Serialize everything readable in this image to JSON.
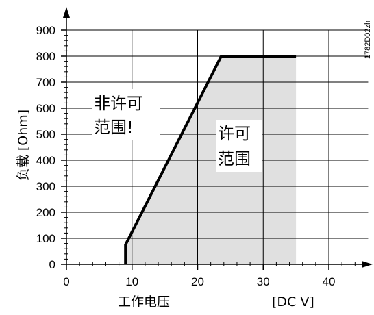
{
  "chart_data": {
    "type": "area",
    "xlabel": "工作电压",
    "xunit": "[DC V]",
    "ylabel": "负载 [Ohm]",
    "xlim": [
      0,
      46
    ],
    "ylim": [
      0,
      900
    ],
    "xticks": [
      0,
      10,
      20,
      30,
      40
    ],
    "yticks": [
      0,
      100,
      200,
      300,
      400,
      500,
      600,
      700,
      800,
      900
    ],
    "grid": true,
    "series": [
      {
        "points": [
          [
            9,
            0
          ],
          [
            9,
            75
          ],
          [
            23.6,
            800
          ],
          [
            35,
            800
          ],
          [
            35,
            0
          ]
        ]
      }
    ],
    "annotations": {
      "not_allowed": [
        "非许可",
        "范围!"
      ],
      "allowed": [
        "许可",
        "范围"
      ]
    },
    "colors": {
      "allowed_area": "#e0e0e0",
      "boundary": "#000000",
      "grid": "#000000"
    }
  },
  "doc_code": "1782D02zh"
}
